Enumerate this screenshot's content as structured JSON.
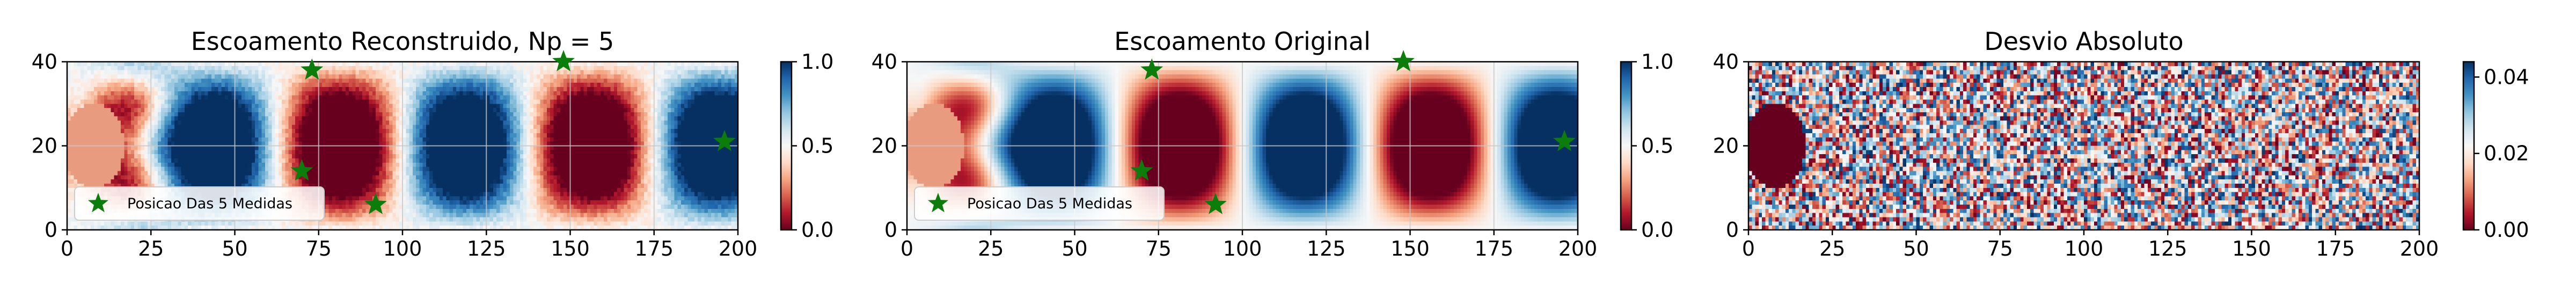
{
  "chart_data": [
    {
      "type": "heatmap",
      "title": "Escoamento Reconstruido, Np = 5",
      "xlim": [
        0,
        200
      ],
      "ylim": [
        0,
        40
      ],
      "xticks": [
        "0",
        "25",
        "50",
        "75",
        "100",
        "125",
        "150",
        "175",
        "200"
      ],
      "yticks": [
        "0",
        "20",
        "40"
      ],
      "grid": true,
      "colormap": "RdBu",
      "colorbar": {
        "range": [
          0.0,
          1.0
        ],
        "ticks": [
          "0.0",
          "0.5",
          "1.0"
        ]
      },
      "field": "reconstructed",
      "legend": {
        "label": "Posicao Das 5 Medidas",
        "placement": "lower-left"
      },
      "markers": [
        {
          "x": 73,
          "y": 38
        },
        {
          "x": 148,
          "y": 40
        },
        {
          "x": 196,
          "y": 21
        },
        {
          "x": 70,
          "y": 14
        },
        {
          "x": 92,
          "y": 6
        }
      ]
    },
    {
      "type": "heatmap",
      "title": "Escoamento Original",
      "xlim": [
        0,
        200
      ],
      "ylim": [
        0,
        40
      ],
      "xticks": [
        "0",
        "25",
        "50",
        "75",
        "100",
        "125",
        "150",
        "175",
        "200"
      ],
      "yticks": [
        "0",
        "20",
        "40"
      ],
      "grid": true,
      "colormap": "RdBu",
      "colorbar": {
        "range": [
          0.0,
          1.0
        ],
        "ticks": [
          "0.0",
          "0.5",
          "1.0"
        ]
      },
      "field": "original",
      "legend": {
        "label": "Posicao Das 5 Medidas",
        "placement": "lower-left"
      },
      "markers": [
        {
          "x": 73,
          "y": 38
        },
        {
          "x": 148,
          "y": 40
        },
        {
          "x": 196,
          "y": 21
        },
        {
          "x": 70,
          "y": 14
        },
        {
          "x": 92,
          "y": 6
        }
      ]
    },
    {
      "type": "heatmap",
      "title": "Desvio Absoluto",
      "xlim": [
        0,
        200
      ],
      "ylim": [
        0,
        40
      ],
      "xticks": [
        "0",
        "25",
        "50",
        "75",
        "100",
        "125",
        "150",
        "175",
        "200"
      ],
      "yticks": [
        "0",
        "20",
        "40"
      ],
      "grid": false,
      "colormap": "RdBu",
      "colorbar": {
        "range": [
          0.0,
          0.044
        ],
        "ticks": [
          "0.00",
          "0.02",
          "0.04"
        ]
      },
      "field": "abs_error",
      "legend": null,
      "markers": []
    }
  ],
  "colors": {
    "star": "#0a7d0a",
    "grid": "#c8c8c8",
    "cylinder": "#e89b7f",
    "cylinder_error": "#67001f"
  }
}
